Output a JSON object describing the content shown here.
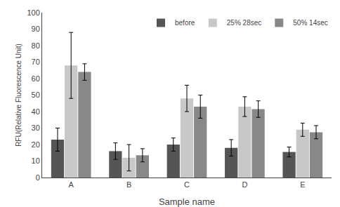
{
  "chart_data": {
    "type": "bar",
    "xlabel": "Sample name",
    "ylabel": "RFU(Relative Fluorescence Unit)",
    "categories": [
      "A",
      "B",
      "C",
      "D",
      "E"
    ],
    "series": [
      {
        "name": "before",
        "color": "#555555",
        "values": [
          23,
          16,
          20,
          18,
          15.5
        ],
        "errors": [
          7,
          5,
          4,
          5,
          3
        ]
      },
      {
        "name": "25% 28sec",
        "color": "#c8c8c8",
        "values": [
          68,
          12,
          48,
          43,
          29
        ],
        "errors": [
          20,
          8,
          8,
          6,
          4
        ]
      },
      {
        "name": "50% 14sec",
        "color": "#888888",
        "values": [
          64,
          13.5,
          43,
          41.5,
          27.5
        ],
        "errors": [
          5,
          4,
          7,
          5,
          4
        ]
      }
    ],
    "ylim": [
      0,
      100
    ],
    "yticks": [
      0,
      10,
      20,
      30,
      40,
      50,
      60,
      70,
      80,
      90,
      100
    ],
    "grid": false,
    "legend": "upper right"
  }
}
